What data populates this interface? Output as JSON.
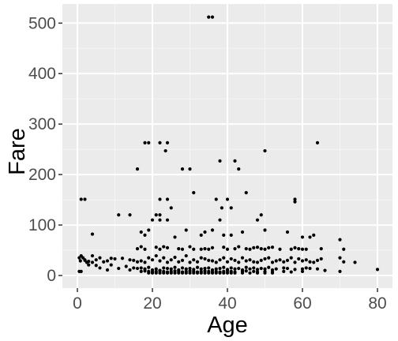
{
  "chart_data": {
    "type": "scatter",
    "title": "",
    "xlabel": "Age",
    "ylabel": "Fare",
    "xlim": [
      -4,
      84
    ],
    "ylim": [
      -25,
      538
    ],
    "x_ticks": [
      0,
      20,
      40,
      60,
      80
    ],
    "y_ticks": [
      0,
      100,
      200,
      300,
      400,
      500
    ],
    "x_tick_labels": [
      "0",
      "20",
      "40",
      "60",
      "80"
    ],
    "y_tick_labels": [
      "0",
      "100",
      "200",
      "300",
      "400",
      "500"
    ],
    "grid": true,
    "legend": "none",
    "colors": {
      "panel": "#ebebeb",
      "grid_major": "#ffffff",
      "grid_minor": "#f5f5f5",
      "point": "#000000",
      "tick": "#333333"
    },
    "series": [
      {
        "x": [
          35,
          36,
          18,
          19,
          22,
          24,
          23.5,
          64,
          50,
          28,
          30,
          16,
          42,
          43,
          38,
          1,
          2,
          31,
          45,
          22,
          24,
          25,
          22,
          38.5,
          41,
          40,
          37,
          21,
          22,
          24,
          38,
          48,
          49,
          58,
          58,
          14,
          11,
          20,
          17,
          18,
          19,
          29,
          34,
          36,
          33,
          39,
          41,
          26,
          44,
          50,
          56,
          60,
          62,
          63,
          70,
          71,
          4,
          16,
          17,
          18,
          21,
          22,
          23,
          24,
          27,
          28,
          30,
          31,
          33,
          34,
          35,
          36,
          39,
          40,
          42,
          43,
          45,
          46,
          47,
          48,
          49,
          50,
          51,
          52,
          54,
          57,
          58,
          59,
          60,
          61,
          65,
          0.5,
          0.8,
          1,
          1.5,
          2,
          2.5,
          3,
          4,
          5,
          6,
          7,
          8,
          9,
          10,
          12,
          14,
          15,
          16,
          17,
          18,
          19,
          20,
          21,
          22,
          23,
          24,
          25,
          26,
          27,
          28,
          29,
          30,
          31,
          32,
          33,
          34,
          35,
          36,
          37,
          38,
          39,
          40,
          41,
          42,
          43,
          44,
          45,
          46,
          47,
          48,
          49,
          50,
          51,
          52,
          53,
          54,
          55,
          56,
          57,
          58,
          59,
          60,
          61,
          62,
          63,
          64,
          65,
          70,
          71,
          74,
          80,
          0.5,
          1,
          2,
          3,
          4,
          5,
          6,
          8,
          9,
          11,
          13,
          14,
          15,
          16,
          17,
          18,
          19,
          20,
          21,
          22,
          23,
          24,
          25,
          26,
          27,
          28,
          29,
          30,
          31,
          32,
          33,
          34,
          35,
          36,
          37,
          38,
          39,
          40,
          41,
          42,
          43,
          44,
          45,
          46,
          47,
          48,
          49,
          50,
          51,
          52,
          53,
          55,
          56,
          58,
          60,
          61,
          62,
          64,
          66,
          70,
          17,
          18,
          19,
          20,
          21,
          22,
          23,
          24,
          25,
          26,
          27,
          28,
          29,
          30,
          31,
          32,
          33,
          34,
          35,
          36,
          37,
          38,
          39,
          40,
          41,
          42,
          44,
          45,
          47,
          48,
          50,
          52,
          55,
          57,
          60,
          19,
          20,
          21,
          22,
          23,
          24,
          25,
          26,
          27,
          28,
          29,
          30,
          31,
          32,
          33,
          34,
          35,
          36,
          37,
          38,
          39,
          40,
          41,
          42,
          44,
          46,
          48,
          50,
          52
        ],
        "y": [
          512,
          512,
          263,
          263,
          263,
          263,
          247,
          263,
          247,
          211,
          211,
          211,
          227,
          211,
          227,
          151,
          151,
          164,
          164,
          151,
          151,
          134,
          120,
          134,
          134,
          151,
          151,
          120,
          110,
          110,
          110,
          110,
          120,
          151,
          146,
          120,
          120,
          110,
          86,
          80,
          90,
          90,
          86,
          90,
          80,
          80,
          80,
          76,
          86,
          90,
          86,
          76,
          76,
          80,
          71,
          52,
          82,
          53,
          57,
          52,
          56,
          52,
          57,
          55,
          53,
          52,
          57,
          52,
          52,
          53,
          52,
          55,
          56,
          52,
          53,
          57,
          53,
          52,
          55,
          56,
          53,
          52,
          55,
          56,
          52,
          52,
          55,
          53,
          52,
          52,
          53,
          35,
          29,
          39,
          35,
          31,
          26,
          28,
          39,
          31,
          35,
          27,
          29,
          34,
          33,
          34,
          31,
          30,
          27,
          29,
          26,
          35,
          31,
          39,
          29,
          35,
          26,
          31,
          36,
          27,
          30,
          39,
          26,
          31,
          27,
          35,
          33,
          30,
          29,
          26,
          31,
          35,
          27,
          33,
          30,
          26,
          35,
          29,
          31,
          27,
          26,
          30,
          33,
          35,
          26,
          29,
          31,
          27,
          30,
          35,
          26,
          33,
          29,
          31,
          27,
          26,
          30,
          33,
          35,
          27,
          26,
          12,
          8,
          8,
          30,
          21,
          26,
          20,
          15,
          11,
          21,
          14,
          18,
          11,
          15,
          14,
          15,
          13,
          16,
          11,
          13,
          10,
          15,
          14,
          13,
          16,
          11,
          15,
          13,
          14,
          12,
          16,
          13,
          14,
          15,
          11,
          13,
          14,
          16,
          12,
          15,
          13,
          14,
          11,
          16,
          13,
          15,
          12,
          14,
          13,
          16,
          11,
          13,
          15,
          14,
          12,
          13,
          15,
          14,
          13,
          10,
          8,
          8,
          9,
          8,
          7,
          8,
          9,
          8,
          7,
          8,
          9,
          8,
          7,
          8,
          9,
          8,
          7,
          8,
          9,
          8,
          7,
          8,
          7,
          8,
          9,
          8,
          7,
          8,
          9,
          8,
          7,
          8,
          7,
          8,
          7,
          8,
          5,
          5,
          5,
          5,
          5,
          5,
          5,
          5,
          5,
          5,
          5,
          5,
          5,
          5,
          5,
          5,
          5,
          5,
          5,
          5,
          5,
          5,
          5,
          5,
          5,
          5,
          5,
          5,
          5
        ]
      }
    ]
  }
}
